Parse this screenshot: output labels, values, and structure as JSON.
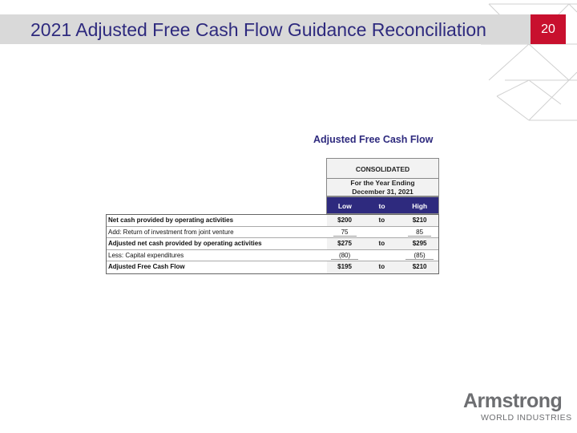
{
  "header": {
    "title": "2021 Adjusted Free Cash Flow Guidance Reconciliation",
    "page_number": "20"
  },
  "table": {
    "caption": "Adjusted Free Cash Flow",
    "group_header": "CONSOLIDATED",
    "period": [
      "For the Year Ending",
      "December 31, 2021"
    ],
    "columns": [
      "Low",
      "to",
      "High"
    ],
    "rows": [
      {
        "label": "Net cash provided by operating activities",
        "low": "$200",
        "to": "to",
        "high": "$210"
      },
      {
        "label": "Add: Return of investment from joint venture",
        "low": "75",
        "high": "85"
      },
      {
        "label": "Adjusted net cash provided by operating activities",
        "low": "$275",
        "to": "to",
        "high": "$295"
      },
      {
        "label": "Less: Capital expenditures",
        "low": "(80)",
        "high": "(85)"
      },
      {
        "label": "Adjusted Free Cash Flow",
        "low": "$195",
        "to": "to",
        "high": "$210"
      }
    ]
  },
  "logo": {
    "name": "Armstrong",
    "tagline": "WORLD INDUSTRIES"
  }
}
